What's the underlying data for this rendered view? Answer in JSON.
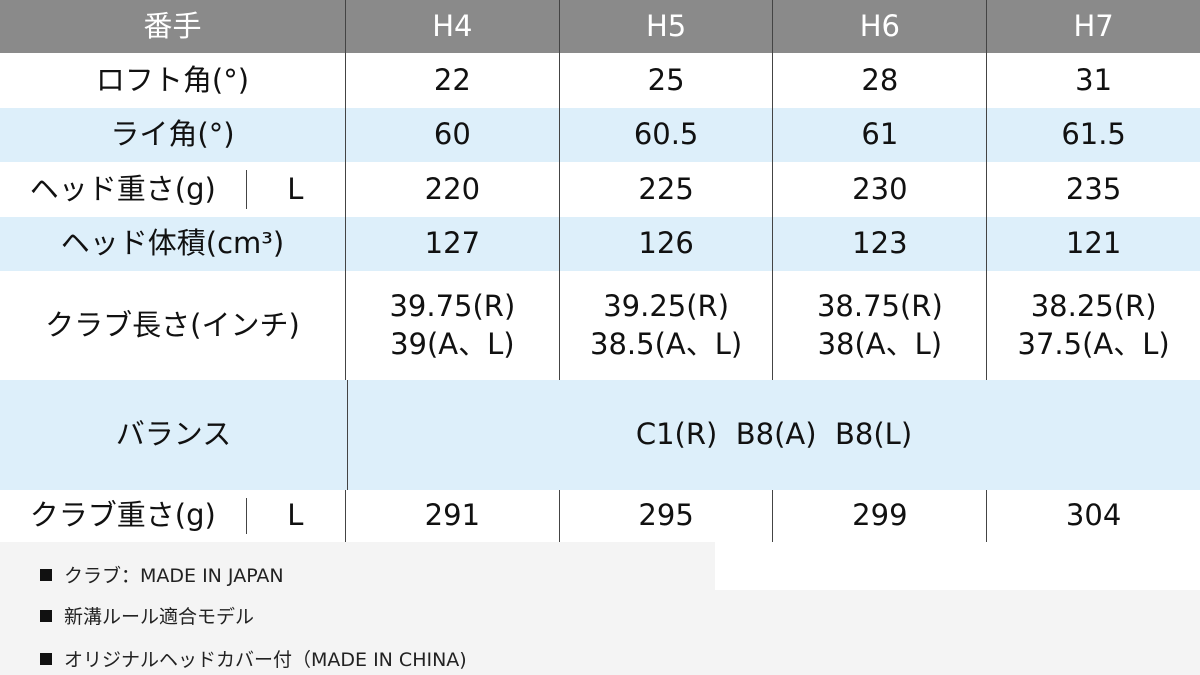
{
  "header": {
    "label": "番手",
    "cols": [
      "H4",
      "H5",
      "H6",
      "H7"
    ]
  },
  "rows": [
    {
      "label": "ロフト角(°)",
      "values": [
        "22",
        "25",
        "28",
        "31"
      ]
    },
    {
      "label": "ライ角(°)",
      "values": [
        "60",
        "60.5",
        "61",
        "61.5"
      ]
    },
    {
      "label": "ヘッド重さ(g)",
      "sub": "L",
      "values": [
        "220",
        "225",
        "230",
        "235"
      ]
    },
    {
      "label": "ヘッド体積(cm³)",
      "values": [
        "127",
        "126",
        "123",
        "121"
      ]
    },
    {
      "label": "クラブ長さ(インチ)",
      "values": [
        [
          "39.75(R)",
          "39(A、L)"
        ],
        [
          "39.25(R)",
          "38.5(A、L)"
        ],
        [
          "38.75(R)",
          "38(A、L)"
        ],
        [
          "38.25(R)",
          "37.5(A、L)"
        ]
      ]
    },
    {
      "label": "バランス",
      "value": "C1(R)  B8(A)  B8(L)"
    },
    {
      "label": "クラブ重さ(g)",
      "sub": "L",
      "values": [
        "291",
        "295",
        "299",
        "304"
      ]
    }
  ],
  "notes": [
    "クラブ：MADE IN JAPAN",
    "新溝ルール適合モデル",
    "オリジナルヘッドカバー付（MADE IN CHINA)"
  ],
  "colors": {
    "header": "#8a8a8a",
    "stripe": "#ddeffa"
  }
}
